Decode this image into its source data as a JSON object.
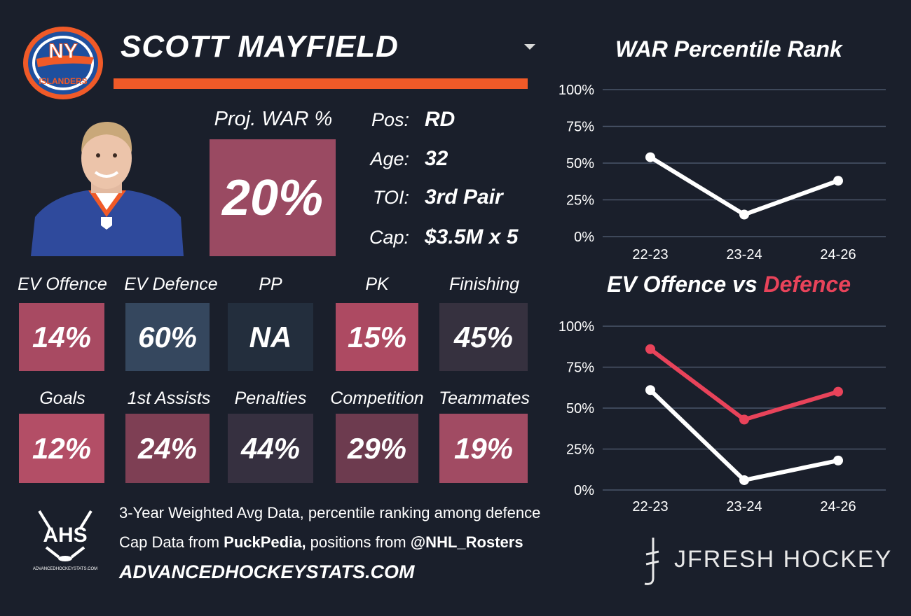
{
  "player": {
    "name": "SCOTT MAYFIELD",
    "team_logo_text": "NY ISLANDERS"
  },
  "proj_war": {
    "label": "Proj. WAR %",
    "value": "20%",
    "color": "#9a4a62"
  },
  "info": [
    {
      "label": "Pos:",
      "value": "RD"
    },
    {
      "label": "Age:",
      "value": "32"
    },
    {
      "label": "TOI:",
      "value": "3rd Pair"
    },
    {
      "label": "Cap:",
      "value": "$3.5M x 5"
    }
  ],
  "tiles": [
    {
      "label": "EV Offence",
      "value": "14%",
      "color": "#a84a62"
    },
    {
      "label": "EV Defence",
      "value": "60%",
      "color": "#35475e"
    },
    {
      "label": "PP",
      "value": "NA",
      "color": "#232e3d"
    },
    {
      "label": "PK",
      "value": "15%",
      "color": "#ad4a62"
    },
    {
      "label": "Finishing",
      "value": "45%",
      "color": "#36313f"
    },
    {
      "label": "Goals",
      "value": "12%",
      "color": "#b34e66"
    },
    {
      "label": "1st Assists",
      "value": "24%",
      "color": "#7e3f54"
    },
    {
      "label": "Penalties",
      "value": "44%",
      "color": "#363040"
    },
    {
      "label": "Competition",
      "value": "29%",
      "color": "#6d3b4f"
    },
    {
      "label": "Teammates",
      "value": "19%",
      "color": "#a14b63"
    }
  ],
  "footer": {
    "line1": "3-Year Weighted Avg Data, percentile ranking among defence",
    "line2_prefix": "Cap Data from ",
    "line2_bold1": "PuckPedia,",
    "line2_mid": " positions from ",
    "line2_bold2": "@NHL_Rosters",
    "site": "ADVANCEDHOCKEYSTATS.COM",
    "ahs_logo_text": "AHS",
    "ahs_logo_sub": "ADVANCEDHOCKEYSTATS.COM",
    "brand": "JFRESH HOCKEY"
  },
  "colors": {
    "background": "#1a1f2b",
    "accent_orange": "#f05a28",
    "defence_red": "#e8435a",
    "line_white": "#ffffff",
    "grid": "#4b566a"
  },
  "chart_data": [
    {
      "type": "line",
      "title": "WAR Percentile Rank",
      "categories": [
        "22-23",
        "23-24",
        "24-26"
      ],
      "series": [
        {
          "values": [
            54,
            15,
            38
          ],
          "color": "#ffffff"
        }
      ],
      "yticks": [
        "100%",
        "75%",
        "50%",
        "25%",
        "0%"
      ],
      "ylim": [
        0,
        100
      ],
      "grid": true
    },
    {
      "type": "line",
      "title_part1": "EV Offence vs ",
      "title_part2": "Defence",
      "categories": [
        "22-23",
        "23-24",
        "24-26"
      ],
      "series": [
        {
          "values": [
            61,
            6,
            18
          ],
          "color": "#ffffff"
        },
        {
          "values": [
            86,
            43,
            60
          ],
          "color": "#e8435a"
        }
      ],
      "yticks": [
        "100%",
        "75%",
        "50%",
        "25%",
        "0%"
      ],
      "ylim": [
        0,
        100
      ],
      "grid": true
    }
  ]
}
